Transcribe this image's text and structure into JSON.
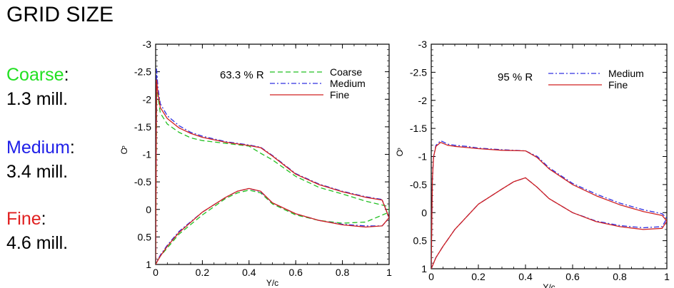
{
  "page_title": "GRID SIZE",
  "grids": [
    {
      "name": "Coarse",
      "separator": ":",
      "size": "1.3 mill.",
      "color": "#22e022"
    },
    {
      "name": "Medium",
      "separator": ":",
      "size": "3.4 mill.",
      "color": "#2020e8"
    },
    {
      "name": "Fine",
      "separator": ":",
      "size": "4.6 mill.",
      "color": "#e02020"
    }
  ],
  "chart_data": [
    {
      "type": "line",
      "annotation": "63.3 % R",
      "xlabel": "Y/c",
      "ylabel": "C",
      "ylabel_sub": "P",
      "xlim": [
        0,
        1
      ],
      "ylim": [
        -3,
        1
      ],
      "y_inverted": true,
      "xticks": [
        0,
        0.2,
        0.4,
        0.6,
        0.8,
        1
      ],
      "xtick_labels": [
        "0",
        "0.2",
        "0.4",
        "0.6",
        "0.8",
        "1"
      ],
      "yticks": [
        -3,
        -2.5,
        -2,
        -1.5,
        -1,
        -0.5,
        0,
        0.5,
        1
      ],
      "ytick_labels": [
        "-3",
        "-2.5",
        "-2",
        "-1.5",
        "-1",
        "-0.5",
        "0",
        "0.5",
        "1"
      ],
      "legend_position": "top-right",
      "series": [
        {
          "name": "Coarse",
          "color": "#22c022",
          "dash": "dashed",
          "x": [
            0.0,
            0.005,
            0.01,
            0.02,
            0.05,
            0.1,
            0.15,
            0.2,
            0.3,
            0.4,
            0.45,
            0.5,
            0.6,
            0.7,
            0.8,
            0.9,
            1.0,
            1.0,
            0.9,
            0.8,
            0.7,
            0.6,
            0.5,
            0.45,
            0.4,
            0.35,
            0.3,
            0.2,
            0.1,
            0.05,
            0.02,
            0.005,
            0.0
          ],
          "y": [
            0.95,
            -2.3,
            -2.05,
            -1.75,
            -1.55,
            -1.4,
            -1.3,
            -1.25,
            -1.2,
            -1.15,
            -1.02,
            -0.9,
            -0.6,
            -0.4,
            -0.28,
            -0.15,
            -0.05,
            0.05,
            0.23,
            0.25,
            0.2,
            0.1,
            -0.1,
            -0.3,
            -0.35,
            -0.3,
            -0.2,
            0.1,
            0.45,
            0.7,
            0.85,
            0.95,
            1.0
          ]
        },
        {
          "name": "Medium",
          "color": "#3030e0",
          "dash": "dashdot",
          "x": [
            0.0,
            0.004,
            0.01,
            0.02,
            0.05,
            0.1,
            0.15,
            0.2,
            0.3,
            0.4,
            0.45,
            0.5,
            0.6,
            0.7,
            0.8,
            0.9,
            0.97,
            1.0,
            0.97,
            0.9,
            0.8,
            0.7,
            0.6,
            0.5,
            0.45,
            0.4,
            0.35,
            0.3,
            0.2,
            0.1,
            0.05,
            0.02,
            0.005,
            0.0
          ],
          "y": [
            0.95,
            -2.55,
            -2.2,
            -1.92,
            -1.7,
            -1.52,
            -1.4,
            -1.33,
            -1.23,
            -1.17,
            -1.13,
            -0.98,
            -0.65,
            -0.46,
            -0.33,
            -0.23,
            -0.18,
            0.16,
            0.3,
            0.3,
            0.27,
            0.2,
            0.08,
            -0.12,
            -0.32,
            -0.38,
            -0.33,
            -0.22,
            0.05,
            0.4,
            0.65,
            0.83,
            0.95,
            1.0
          ]
        },
        {
          "name": "Fine",
          "color": "#d02020",
          "dash": "solid",
          "x": [
            0.0,
            0.004,
            0.01,
            0.02,
            0.05,
            0.1,
            0.15,
            0.2,
            0.3,
            0.4,
            0.45,
            0.5,
            0.6,
            0.7,
            0.8,
            0.9,
            0.97,
            1.0,
            0.97,
            0.9,
            0.8,
            0.7,
            0.6,
            0.5,
            0.45,
            0.4,
            0.35,
            0.3,
            0.2,
            0.1,
            0.05,
            0.02,
            0.005,
            0.0
          ],
          "y": [
            0.95,
            -2.35,
            -2.1,
            -1.85,
            -1.65,
            -1.48,
            -1.38,
            -1.31,
            -1.22,
            -1.16,
            -1.12,
            -0.97,
            -0.64,
            -0.45,
            -0.32,
            -0.22,
            -0.17,
            0.15,
            0.3,
            0.32,
            0.28,
            0.2,
            0.08,
            -0.12,
            -0.33,
            -0.38,
            -0.33,
            -0.22,
            0.05,
            0.42,
            0.67,
            0.85,
            0.96,
            1.0
          ]
        }
      ]
    },
    {
      "type": "line",
      "annotation": "95 % R",
      "xlabel": "Y/c",
      "ylabel": "C",
      "ylabel_sub": "P",
      "xlim": [
        0,
        1
      ],
      "ylim": [
        -3,
        1
      ],
      "y_inverted": true,
      "xticks": [
        0,
        0.2,
        0.4,
        0.6,
        0.8,
        1
      ],
      "xtick_labels": [
        "0",
        "0.2",
        "0.4",
        "0.6",
        "0.8",
        "1"
      ],
      "yticks": [
        -3,
        -2.5,
        -2,
        -1.5,
        -1,
        -0.5,
        0,
        0.5,
        1
      ],
      "ytick_labels": [
        "-3",
        "-2.5",
        "-2",
        "-1.5",
        "-1",
        "-0.5",
        "0",
        "0.5",
        "1"
      ],
      "legend_position": "top-right",
      "series": [
        {
          "name": "Medium",
          "color": "#3030e0",
          "dash": "dashdot",
          "x": [
            0.0,
            0.005,
            0.01,
            0.02,
            0.04,
            0.07,
            0.1,
            0.15,
            0.2,
            0.3,
            0.4,
            0.45,
            0.5,
            0.6,
            0.7,
            0.8,
            0.9,
            0.98,
            1.0,
            0.98,
            0.9,
            0.8,
            0.7,
            0.6,
            0.5,
            0.45,
            0.4,
            0.35,
            0.3,
            0.2,
            0.1,
            0.05,
            0.02,
            0.01,
            0.0
          ],
          "y": [
            0.95,
            -0.6,
            -1.0,
            -1.2,
            -1.28,
            -1.22,
            -1.2,
            -1.18,
            -1.15,
            -1.12,
            -1.1,
            -1.0,
            -0.8,
            -0.52,
            -0.33,
            -0.17,
            -0.05,
            0.02,
            0.1,
            0.25,
            0.27,
            0.23,
            0.15,
            0.0,
            -0.25,
            -0.45,
            -0.62,
            -0.55,
            -0.42,
            -0.15,
            0.3,
            0.6,
            0.8,
            0.9,
            1.0
          ]
        },
        {
          "name": "Fine",
          "color": "#d02020",
          "dash": "solid",
          "x": [
            0.0,
            0.005,
            0.01,
            0.02,
            0.04,
            0.07,
            0.1,
            0.15,
            0.2,
            0.3,
            0.4,
            0.45,
            0.5,
            0.6,
            0.7,
            0.8,
            0.9,
            0.98,
            1.0,
            0.98,
            0.9,
            0.8,
            0.7,
            0.6,
            0.5,
            0.45,
            0.4,
            0.35,
            0.3,
            0.2,
            0.1,
            0.05,
            0.02,
            0.01,
            0.0
          ],
          "y": [
            0.95,
            -0.6,
            -1.0,
            -1.18,
            -1.25,
            -1.2,
            -1.18,
            -1.16,
            -1.14,
            -1.11,
            -1.1,
            -0.98,
            -0.78,
            -0.5,
            -0.3,
            -0.14,
            -0.02,
            0.05,
            0.15,
            0.28,
            0.3,
            0.25,
            0.16,
            0.0,
            -0.25,
            -0.45,
            -0.62,
            -0.55,
            -0.42,
            -0.15,
            0.3,
            0.6,
            0.8,
            0.9,
            1.0
          ]
        }
      ]
    }
  ]
}
